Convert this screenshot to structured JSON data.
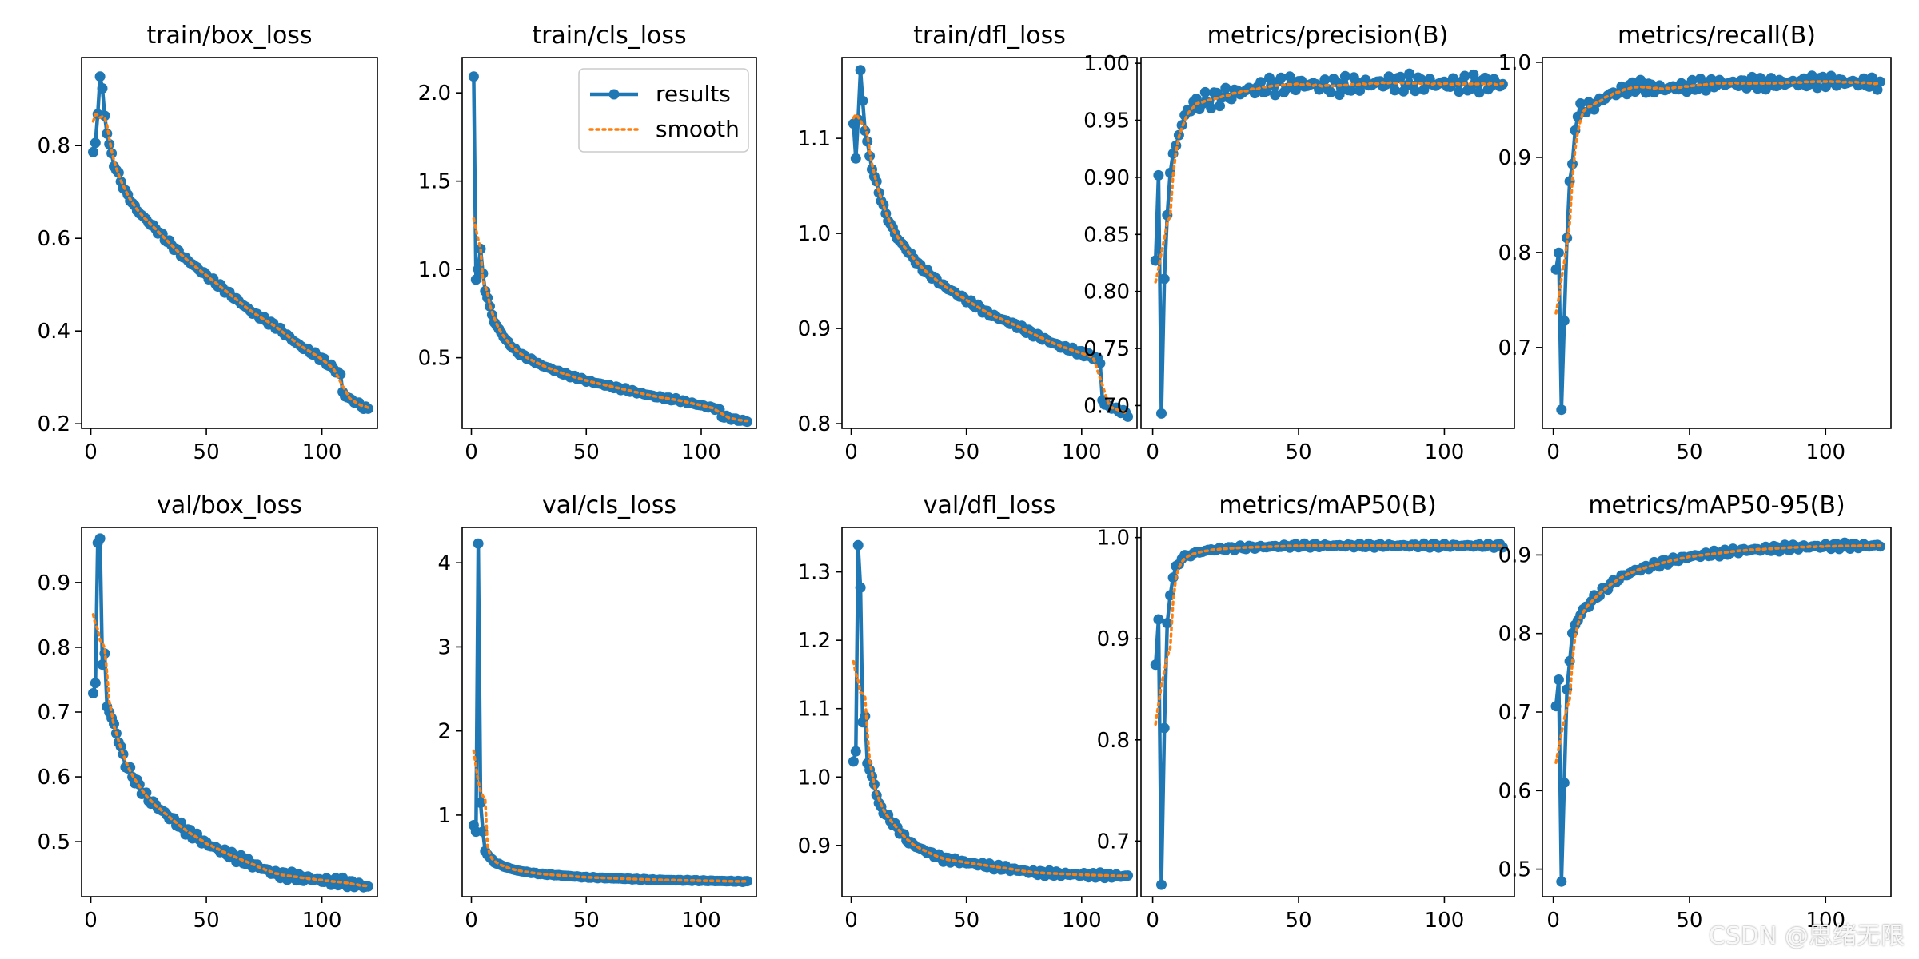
{
  "watermark": "CSDN @思绪无限",
  "colors": {
    "results": "#1f77b4",
    "smooth": "#ff7f0e",
    "axis": "#000000"
  },
  "chart_data": [
    {
      "type": "line",
      "title": "train/box_loss",
      "xlim": [
        -4,
        124
      ],
      "ylim": [
        0.19,
        0.99
      ],
      "xticks": [
        0,
        50,
        100
      ],
      "yticks": [
        0.2,
        0.4,
        0.6,
        0.8
      ],
      "ytick_labels": [
        "0.2",
        "0.4",
        "0.6",
        "0.8"
      ],
      "knots": [
        [
          1,
          0.785
        ],
        [
          2,
          0.805
        ],
        [
          3,
          0.87
        ],
        [
          4,
          0.95
        ],
        [
          5,
          0.92
        ],
        [
          6,
          0.865
        ],
        [
          7,
          0.83
        ],
        [
          8,
          0.8
        ],
        [
          10,
          0.76
        ],
        [
          15,
          0.7
        ],
        [
          20,
          0.66
        ],
        [
          30,
          0.61
        ],
        [
          40,
          0.56
        ],
        [
          50,
          0.52
        ],
        [
          60,
          0.48
        ],
        [
          70,
          0.44
        ],
        [
          80,
          0.41
        ],
        [
          90,
          0.37
        ],
        [
          100,
          0.34
        ],
        [
          107,
          0.31
        ],
        [
          108,
          0.305
        ],
        [
          109,
          0.27
        ],
        [
          110,
          0.26
        ],
        [
          115,
          0.245
        ],
        [
          120,
          0.23
        ]
      ],
      "noise": 0.004,
      "legend": null
    },
    {
      "type": "line",
      "title": "train/cls_loss",
      "xlim": [
        -4,
        124
      ],
      "ylim": [
        0.1,
        2.2
      ],
      "xticks": [
        0,
        50,
        100
      ],
      "yticks": [
        0.5,
        1.0,
        1.5,
        2.0
      ],
      "ytick_labels": [
        "0.5",
        "1.0",
        "1.5",
        "2.0"
      ],
      "knots": [
        [
          1,
          2.09
        ],
        [
          2,
          0.95
        ],
        [
          3,
          1.0
        ],
        [
          4,
          1.11
        ],
        [
          5,
          0.98
        ],
        [
          6,
          0.88
        ],
        [
          8,
          0.79
        ],
        [
          10,
          0.7
        ],
        [
          15,
          0.6
        ],
        [
          20,
          0.53
        ],
        [
          30,
          0.46
        ],
        [
          40,
          0.41
        ],
        [
          50,
          0.37
        ],
        [
          60,
          0.34
        ],
        [
          70,
          0.31
        ],
        [
          80,
          0.28
        ],
        [
          90,
          0.26
        ],
        [
          100,
          0.23
        ],
        [
          107,
          0.21
        ],
        [
          108,
          0.2
        ],
        [
          109,
          0.17
        ],
        [
          115,
          0.15
        ],
        [
          120,
          0.14
        ]
      ],
      "noise": 0.006,
      "legend": {
        "placement": "upper right",
        "results_label": "results",
        "smooth_label": "smooth"
      }
    },
    {
      "type": "line",
      "title": "train/dfl_loss",
      "xlim": [
        -4,
        124
      ],
      "ylim": [
        0.795,
        1.185
      ],
      "xticks": [
        0,
        50,
        100
      ],
      "yticks": [
        0.8,
        0.9,
        1.0,
        1.1
      ],
      "ytick_labels": [
        "0.8",
        "0.9",
        "1.0",
        "1.1"
      ],
      "knots": [
        [
          1,
          1.115
        ],
        [
          2,
          1.08
        ],
        [
          3,
          1.12
        ],
        [
          4,
          1.17
        ],
        [
          5,
          1.14
        ],
        [
          6,
          1.11
        ],
        [
          8,
          1.08
        ],
        [
          10,
          1.06
        ],
        [
          15,
          1.02
        ],
        [
          20,
          0.995
        ],
        [
          30,
          0.965
        ],
        [
          40,
          0.945
        ],
        [
          50,
          0.93
        ],
        [
          60,
          0.915
        ],
        [
          70,
          0.905
        ],
        [
          80,
          0.893
        ],
        [
          90,
          0.882
        ],
        [
          100,
          0.874
        ],
        [
          107,
          0.868
        ],
        [
          108,
          0.864
        ],
        [
          109,
          0.825
        ],
        [
          110,
          0.82
        ],
        [
          115,
          0.815
        ],
        [
          120,
          0.81
        ]
      ],
      "noise": 0.002,
      "legend": null
    },
    {
      "type": "line",
      "title": "metrics/precision(B)",
      "xlim": [
        -4,
        124
      ],
      "ylim": [
        0.68,
        1.005
      ],
      "xticks": [
        0,
        50,
        100
      ],
      "yticks": [
        0.7,
        0.75,
        0.8,
        0.85,
        0.9,
        0.95,
        1.0
      ],
      "ytick_labels": [
        "0.70",
        "0.75",
        "0.80",
        "0.85",
        "0.90",
        "0.95",
        "1.00"
      ],
      "knots": [
        [
          1,
          0.835
        ],
        [
          2,
          0.9
        ],
        [
          3,
          0.687
        ],
        [
          4,
          0.815
        ],
        [
          5,
          0.87
        ],
        [
          6,
          0.9
        ],
        [
          7,
          0.92
        ],
        [
          8,
          0.93
        ],
        [
          10,
          0.945
        ],
        [
          12,
          0.96
        ],
        [
          15,
          0.965
        ],
        [
          20,
          0.968
        ],
        [
          30,
          0.975
        ],
        [
          40,
          0.98
        ],
        [
          50,
          0.982
        ],
        [
          60,
          0.98
        ],
        [
          80,
          0.983
        ],
        [
          100,
          0.982
        ],
        [
          120,
          0.982
        ]
      ],
      "noise": 0.006,
      "legend": null
    },
    {
      "type": "line",
      "title": "metrics/recall(B)",
      "xlim": [
        -4,
        124
      ],
      "ylim": [
        0.615,
        1.005
      ],
      "xticks": [
        0,
        50,
        100
      ],
      "yticks": [
        0.7,
        0.8,
        0.9,
        1.0
      ],
      "ytick_labels": [
        "0.7",
        "0.8",
        "0.9",
        "1.0"
      ],
      "knots": [
        [
          1,
          0.785
        ],
        [
          2,
          0.8
        ],
        [
          3,
          0.63
        ],
        [
          4,
          0.73
        ],
        [
          5,
          0.82
        ],
        [
          6,
          0.87
        ],
        [
          7,
          0.89
        ],
        [
          8,
          0.935
        ],
        [
          10,
          0.95
        ],
        [
          15,
          0.955
        ],
        [
          20,
          0.965
        ],
        [
          30,
          0.975
        ],
        [
          40,
          0.972
        ],
        [
          60,
          0.978
        ],
        [
          80,
          0.978
        ],
        [
          100,
          0.98
        ],
        [
          120,
          0.978
        ]
      ],
      "noise": 0.005,
      "legend": null
    },
    {
      "type": "line",
      "title": "val/box_loss",
      "xlim": [
        -4,
        124
      ],
      "ylim": [
        0.415,
        0.985
      ],
      "xticks": [
        0,
        50,
        100
      ],
      "yticks": [
        0.5,
        0.6,
        0.7,
        0.8,
        0.9
      ],
      "ytick_labels": [
        "0.5",
        "0.6",
        "0.7",
        "0.8",
        "0.9"
      ],
      "knots": [
        [
          1,
          0.727
        ],
        [
          2,
          0.74
        ],
        [
          3,
          0.965
        ],
        [
          4,
          0.97
        ],
        [
          5,
          0.77
        ],
        [
          6,
          0.79
        ],
        [
          7,
          0.71
        ],
        [
          10,
          0.68
        ],
        [
          15,
          0.62
        ],
        [
          20,
          0.59
        ],
        [
          25,
          0.565
        ],
        [
          30,
          0.55
        ],
        [
          40,
          0.52
        ],
        [
          50,
          0.497
        ],
        [
          60,
          0.48
        ],
        [
          70,
          0.465
        ],
        [
          80,
          0.45
        ],
        [
          90,
          0.445
        ],
        [
          100,
          0.44
        ],
        [
          110,
          0.437
        ],
        [
          120,
          0.43
        ]
      ],
      "noise": 0.005,
      "legend": null
    },
    {
      "type": "line",
      "title": "val/cls_loss",
      "xlim": [
        -4,
        124
      ],
      "ylim": [
        0.03,
        4.42
      ],
      "xticks": [
        0,
        50,
        100
      ],
      "yticks": [
        1,
        2,
        3,
        4
      ],
      "ytick_labels": [
        "1",
        "2",
        "3",
        "4"
      ],
      "knots": [
        [
          1,
          0.88
        ],
        [
          2,
          0.8
        ],
        [
          3,
          4.23
        ],
        [
          4,
          1.15
        ],
        [
          5,
          0.8
        ],
        [
          6,
          0.57
        ],
        [
          8,
          0.5
        ],
        [
          10,
          0.44
        ],
        [
          15,
          0.38
        ],
        [
          20,
          0.34
        ],
        [
          30,
          0.3
        ],
        [
          50,
          0.26
        ],
        [
          80,
          0.23
        ],
        [
          100,
          0.22
        ],
        [
          120,
          0.21
        ]
      ],
      "noise": 0.004,
      "legend": null
    },
    {
      "type": "line",
      "title": "val/dfl_loss",
      "xlim": [
        -4,
        124
      ],
      "ylim": [
        0.825,
        1.365
      ],
      "xticks": [
        0,
        50,
        100
      ],
      "yticks": [
        0.9,
        1.0,
        1.1,
        1.2,
        1.3
      ],
      "ytick_labels": [
        "0.9",
        "1.0",
        "1.1",
        "1.2",
        "1.3"
      ],
      "knots": [
        [
          1,
          1.02
        ],
        [
          2,
          1.04
        ],
        [
          3,
          1.34
        ],
        [
          4,
          1.275
        ],
        [
          5,
          1.08
        ],
        [
          6,
          1.09
        ],
        [
          7,
          1.02
        ],
        [
          10,
          0.99
        ],
        [
          12,
          0.96
        ],
        [
          15,
          0.945
        ],
        [
          20,
          0.925
        ],
        [
          25,
          0.905
        ],
        [
          30,
          0.895
        ],
        [
          40,
          0.88
        ],
        [
          50,
          0.875
        ],
        [
          60,
          0.87
        ],
        [
          70,
          0.865
        ],
        [
          80,
          0.86
        ],
        [
          100,
          0.857
        ],
        [
          120,
          0.855
        ]
      ],
      "noise": 0.003,
      "legend": null
    },
    {
      "type": "line",
      "title": "metrics/mAP50(B)",
      "xlim": [
        -4,
        124
      ],
      "ylim": [
        0.645,
        1.01
      ],
      "xticks": [
        0,
        50,
        100
      ],
      "yticks": [
        0.7,
        0.8,
        0.9,
        1.0
      ],
      "ytick_labels": [
        "0.7",
        "0.8",
        "0.9",
        "1.0"
      ],
      "knots": [
        [
          1,
          0.873
        ],
        [
          2,
          0.92
        ],
        [
          3,
          0.658
        ],
        [
          4,
          0.81
        ],
        [
          5,
          0.915
        ],
        [
          6,
          0.945
        ],
        [
          7,
          0.96
        ],
        [
          8,
          0.97
        ],
        [
          10,
          0.98
        ],
        [
          15,
          0.985
        ],
        [
          20,
          0.988
        ],
        [
          30,
          0.99
        ],
        [
          50,
          0.992
        ],
        [
          80,
          0.992
        ],
        [
          100,
          0.992
        ],
        [
          120,
          0.992
        ]
      ],
      "noise": 0.0015,
      "legend": null
    },
    {
      "type": "line",
      "title": "metrics/mAP50-95(B)",
      "xlim": [
        -4,
        124
      ],
      "ylim": [
        0.465,
        0.935
      ],
      "xticks": [
        0,
        50,
        100
      ],
      "yticks": [
        0.5,
        0.6,
        0.7,
        0.8,
        0.9
      ],
      "ytick_labels": [
        "0.5",
        "0.6",
        "0.7",
        "0.8",
        "0.9"
      ],
      "knots": [
        [
          1,
          0.71
        ],
        [
          2,
          0.742
        ],
        [
          3,
          0.482
        ],
        [
          4,
          0.61
        ],
        [
          5,
          0.73
        ],
        [
          6,
          0.765
        ],
        [
          7,
          0.8
        ],
        [
          8,
          0.81
        ],
        [
          10,
          0.825
        ],
        [
          15,
          0.845
        ],
        [
          20,
          0.86
        ],
        [
          25,
          0.872
        ],
        [
          30,
          0.88
        ],
        [
          40,
          0.89
        ],
        [
          50,
          0.898
        ],
        [
          60,
          0.902
        ],
        [
          70,
          0.906
        ],
        [
          80,
          0.908
        ],
        [
          90,
          0.91
        ],
        [
          100,
          0.911
        ],
        [
          120,
          0.912
        ]
      ],
      "noise": 0.003,
      "legend": null
    }
  ]
}
